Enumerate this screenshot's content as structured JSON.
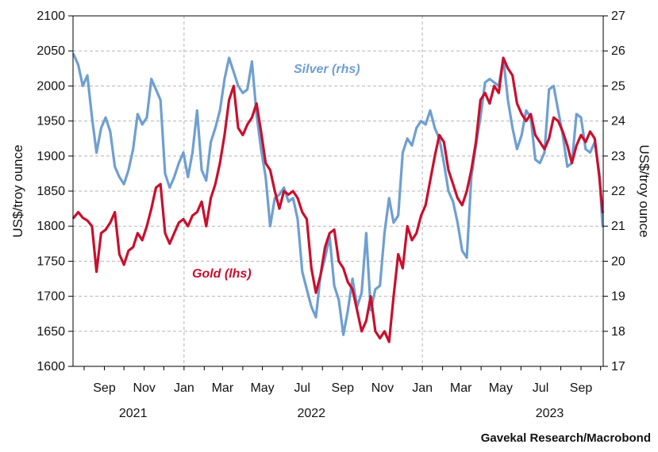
{
  "chart_data": {
    "type": "line",
    "source": "Gavekal Research/Macrobond",
    "y_left": {
      "label": "US$/troy ounce",
      "min": 1600,
      "max": 2100,
      "ticks": [
        1600,
        1650,
        1700,
        1750,
        1800,
        1850,
        1900,
        1950,
        2000,
        2050,
        2100
      ]
    },
    "y_right": {
      "label": "US$/troy ounce",
      "min": 17,
      "max": 27,
      "ticks": [
        17,
        18,
        19,
        20,
        21,
        22,
        23,
        24,
        25,
        26,
        27
      ]
    },
    "x_range": [
      "2021-07-15",
      "2023-10-05"
    ],
    "x_month_labels": [
      {
        "date": "2021-09-01",
        "label": "Sep"
      },
      {
        "date": "2021-11-01",
        "label": "Nov"
      },
      {
        "date": "2022-01-01",
        "label": "Jan"
      },
      {
        "date": "2022-03-01",
        "label": "Mar"
      },
      {
        "date": "2022-05-01",
        "label": "May"
      },
      {
        "date": "2022-07-01",
        "label": "Jul"
      },
      {
        "date": "2022-09-01",
        "label": "Sep"
      },
      {
        "date": "2022-11-01",
        "label": "Nov"
      },
      {
        "date": "2023-01-01",
        "label": "Jan"
      },
      {
        "date": "2023-03-01",
        "label": "Mar"
      },
      {
        "date": "2023-05-01",
        "label": "May"
      },
      {
        "date": "2023-07-01",
        "label": "Jul"
      },
      {
        "date": "2023-09-01",
        "label": "Sep"
      }
    ],
    "x_year_labels": [
      {
        "date": "2021-10-15",
        "label": "2021"
      },
      {
        "date": "2022-07-15",
        "label": "2022"
      },
      {
        "date": "2023-07-15",
        "label": "2023"
      }
    ],
    "gridlines": {
      "vertical_dates": [
        "2022-01-01",
        "2023-01-01"
      ],
      "horizontal": "left-axis ticks",
      "style": "dashed"
    },
    "colors": {
      "gold": "#c8102e",
      "silver": "#6f9fd1"
    },
    "series": [
      {
        "name": "Gold (lhs)",
        "axis": "left",
        "color": "#c8102e",
        "points": [
          [
            "2021-07-16",
            1812
          ],
          [
            "2021-07-23",
            1820
          ],
          [
            "2021-07-30",
            1812
          ],
          [
            "2021-08-06",
            1808
          ],
          [
            "2021-08-13",
            1800
          ],
          [
            "2021-08-20",
            1735
          ],
          [
            "2021-08-27",
            1790
          ],
          [
            "2021-09-03",
            1795
          ],
          [
            "2021-09-10",
            1805
          ],
          [
            "2021-09-17",
            1820
          ],
          [
            "2021-09-24",
            1760
          ],
          [
            "2021-10-01",
            1745
          ],
          [
            "2021-10-08",
            1765
          ],
          [
            "2021-10-15",
            1770
          ],
          [
            "2021-10-22",
            1790
          ],
          [
            "2021-10-29",
            1780
          ],
          [
            "2021-11-05",
            1800
          ],
          [
            "2021-11-12",
            1825
          ],
          [
            "2021-11-19",
            1855
          ],
          [
            "2021-11-26",
            1860
          ],
          [
            "2021-12-03",
            1790
          ],
          [
            "2021-12-10",
            1775
          ],
          [
            "2021-12-17",
            1790
          ],
          [
            "2021-12-24",
            1805
          ],
          [
            "2021-12-31",
            1810
          ],
          [
            "2022-01-07",
            1800
          ],
          [
            "2022-01-14",
            1815
          ],
          [
            "2022-01-21",
            1820
          ],
          [
            "2022-01-28",
            1835
          ],
          [
            "2022-02-04",
            1800
          ],
          [
            "2022-02-11",
            1840
          ],
          [
            "2022-02-18",
            1860
          ],
          [
            "2022-02-25",
            1890
          ],
          [
            "2022-03-04",
            1930
          ],
          [
            "2022-03-11",
            1980
          ],
          [
            "2022-03-18",
            2000
          ],
          [
            "2022-03-25",
            1940
          ],
          [
            "2022-04-01",
            1930
          ],
          [
            "2022-04-08",
            1945
          ],
          [
            "2022-04-15",
            1955
          ],
          [
            "2022-04-22",
            1975
          ],
          [
            "2022-04-29",
            1935
          ],
          [
            "2022-05-06",
            1890
          ],
          [
            "2022-05-13",
            1880
          ],
          [
            "2022-05-20",
            1850
          ],
          [
            "2022-05-27",
            1825
          ],
          [
            "2022-06-03",
            1850
          ],
          [
            "2022-06-10",
            1845
          ],
          [
            "2022-06-17",
            1850
          ],
          [
            "2022-06-24",
            1840
          ],
          [
            "2022-07-01",
            1820
          ],
          [
            "2022-07-08",
            1810
          ],
          [
            "2022-07-15",
            1740
          ],
          [
            "2022-07-22",
            1705
          ],
          [
            "2022-07-29",
            1730
          ],
          [
            "2022-08-05",
            1770
          ],
          [
            "2022-08-12",
            1790
          ],
          [
            "2022-08-19",
            1795
          ],
          [
            "2022-08-26",
            1750
          ],
          [
            "2022-09-02",
            1740
          ],
          [
            "2022-09-09",
            1720
          ],
          [
            "2022-09-16",
            1710
          ],
          [
            "2022-09-23",
            1680
          ],
          [
            "2022-09-30",
            1650
          ],
          [
            "2022-10-07",
            1665
          ],
          [
            "2022-10-14",
            1700
          ],
          [
            "2022-10-21",
            1650
          ],
          [
            "2022-10-28",
            1640
          ],
          [
            "2022-11-04",
            1650
          ],
          [
            "2022-11-11",
            1635
          ],
          [
            "2022-11-18",
            1700
          ],
          [
            "2022-11-25",
            1760
          ],
          [
            "2022-12-02",
            1740
          ],
          [
            "2022-12-09",
            1800
          ],
          [
            "2022-12-16",
            1780
          ],
          [
            "2022-12-23",
            1790
          ],
          [
            "2022-12-30",
            1815
          ],
          [
            "2023-01-06",
            1830
          ],
          [
            "2023-01-13",
            1865
          ],
          [
            "2023-01-20",
            1900
          ],
          [
            "2023-01-27",
            1930
          ],
          [
            "2023-02-03",
            1920
          ],
          [
            "2023-02-10",
            1880
          ],
          [
            "2023-02-17",
            1860
          ],
          [
            "2023-02-24",
            1840
          ],
          [
            "2023-03-03",
            1830
          ],
          [
            "2023-03-10",
            1850
          ],
          [
            "2023-03-17",
            1880
          ],
          [
            "2023-03-24",
            1920
          ],
          [
            "2023-03-31",
            1980
          ],
          [
            "2023-04-07",
            1990
          ],
          [
            "2023-04-14",
            1975
          ],
          [
            "2023-04-21",
            2000
          ],
          [
            "2023-04-28",
            1990
          ],
          [
            "2023-05-05",
            2040
          ],
          [
            "2023-05-12",
            2025
          ],
          [
            "2023-05-19",
            2015
          ],
          [
            "2023-05-26",
            1975
          ],
          [
            "2023-06-02",
            1960
          ],
          [
            "2023-06-09",
            1950
          ],
          [
            "2023-06-16",
            1960
          ],
          [
            "2023-06-23",
            1930
          ],
          [
            "2023-06-30",
            1920
          ],
          [
            "2023-07-07",
            1910
          ],
          [
            "2023-07-14",
            1925
          ],
          [
            "2023-07-21",
            1955
          ],
          [
            "2023-07-28",
            1950
          ],
          [
            "2023-08-04",
            1935
          ],
          [
            "2023-08-11",
            1915
          ],
          [
            "2023-08-18",
            1890
          ],
          [
            "2023-08-25",
            1915
          ],
          [
            "2023-09-01",
            1930
          ],
          [
            "2023-09-08",
            1920
          ],
          [
            "2023-09-15",
            1935
          ],
          [
            "2023-09-22",
            1925
          ],
          [
            "2023-09-29",
            1870
          ],
          [
            "2023-10-04",
            1820
          ]
        ]
      },
      {
        "name": "Silver (rhs)",
        "axis": "right",
        "color": "#6f9fd1",
        "points": [
          [
            "2021-07-16",
            25.9
          ],
          [
            "2021-07-23",
            25.6
          ],
          [
            "2021-07-30",
            25.0
          ],
          [
            "2021-08-06",
            25.3
          ],
          [
            "2021-08-13",
            24.1
          ],
          [
            "2021-08-20",
            23.1
          ],
          [
            "2021-08-27",
            23.8
          ],
          [
            "2021-09-03",
            24.1
          ],
          [
            "2021-09-10",
            23.7
          ],
          [
            "2021-09-17",
            22.7
          ],
          [
            "2021-09-24",
            22.4
          ],
          [
            "2021-10-01",
            22.2
          ],
          [
            "2021-10-08",
            22.6
          ],
          [
            "2021-10-15",
            23.2
          ],
          [
            "2021-10-22",
            24.2
          ],
          [
            "2021-10-29",
            23.9
          ],
          [
            "2021-11-05",
            24.1
          ],
          [
            "2021-11-12",
            25.2
          ],
          [
            "2021-11-19",
            24.9
          ],
          [
            "2021-11-26",
            24.6
          ],
          [
            "2021-12-03",
            22.5
          ],
          [
            "2021-12-10",
            22.1
          ],
          [
            "2021-12-17",
            22.4
          ],
          [
            "2021-12-24",
            22.8
          ],
          [
            "2021-12-31",
            23.1
          ],
          [
            "2022-01-07",
            22.4
          ],
          [
            "2022-01-14",
            23.1
          ],
          [
            "2022-01-21",
            24.3
          ],
          [
            "2022-01-28",
            22.6
          ],
          [
            "2022-02-04",
            22.3
          ],
          [
            "2022-02-11",
            23.4
          ],
          [
            "2022-02-18",
            23.8
          ],
          [
            "2022-02-25",
            24.3
          ],
          [
            "2022-03-04",
            25.2
          ],
          [
            "2022-03-11",
            25.8
          ],
          [
            "2022-03-18",
            25.4
          ],
          [
            "2022-03-25",
            25.0
          ],
          [
            "2022-04-01",
            24.8
          ],
          [
            "2022-04-08",
            24.9
          ],
          [
            "2022-04-15",
            25.7
          ],
          [
            "2022-04-22",
            24.2
          ],
          [
            "2022-04-29",
            23.2
          ],
          [
            "2022-05-06",
            22.4
          ],
          [
            "2022-05-13",
            21.0
          ],
          [
            "2022-05-20",
            21.8
          ],
          [
            "2022-05-27",
            21.9
          ],
          [
            "2022-06-03",
            22.1
          ],
          [
            "2022-06-10",
            21.7
          ],
          [
            "2022-06-17",
            21.8
          ],
          [
            "2022-06-24",
            21.2
          ],
          [
            "2022-07-01",
            19.7
          ],
          [
            "2022-07-08",
            19.2
          ],
          [
            "2022-07-15",
            18.7
          ],
          [
            "2022-07-22",
            18.4
          ],
          [
            "2022-07-29",
            19.6
          ],
          [
            "2022-08-05",
            20.1
          ],
          [
            "2022-08-12",
            20.7
          ],
          [
            "2022-08-19",
            19.3
          ],
          [
            "2022-08-26",
            18.9
          ],
          [
            "2022-09-02",
            17.9
          ],
          [
            "2022-09-09",
            18.6
          ],
          [
            "2022-09-16",
            19.5
          ],
          [
            "2022-09-23",
            18.7
          ],
          [
            "2022-09-30",
            19.1
          ],
          [
            "2022-10-07",
            20.8
          ],
          [
            "2022-10-14",
            18.6
          ],
          [
            "2022-10-21",
            19.2
          ],
          [
            "2022-10-28",
            19.3
          ],
          [
            "2022-11-04",
            20.8
          ],
          [
            "2022-11-11",
            21.8
          ],
          [
            "2022-11-18",
            21.1
          ],
          [
            "2022-11-25",
            21.3
          ],
          [
            "2022-12-02",
            23.1
          ],
          [
            "2022-12-09",
            23.5
          ],
          [
            "2022-12-16",
            23.3
          ],
          [
            "2022-12-23",
            23.8
          ],
          [
            "2022-12-30",
            24.0
          ],
          [
            "2023-01-06",
            23.9
          ],
          [
            "2023-01-13",
            24.3
          ],
          [
            "2023-01-20",
            23.8
          ],
          [
            "2023-01-27",
            23.5
          ],
          [
            "2023-02-03",
            22.8
          ],
          [
            "2023-02-10",
            22.0
          ],
          [
            "2023-02-17",
            21.7
          ],
          [
            "2023-02-24",
            21.1
          ],
          [
            "2023-03-03",
            20.3
          ],
          [
            "2023-03-10",
            20.1
          ],
          [
            "2023-03-17",
            22.4
          ],
          [
            "2023-03-24",
            23.3
          ],
          [
            "2023-03-31",
            24.1
          ],
          [
            "2023-04-07",
            25.1
          ],
          [
            "2023-04-14",
            25.2
          ],
          [
            "2023-04-21",
            25.1
          ],
          [
            "2023-04-28",
            25.0
          ],
          [
            "2023-05-05",
            25.8
          ],
          [
            "2023-05-12",
            24.6
          ],
          [
            "2023-05-19",
            23.8
          ],
          [
            "2023-05-26",
            23.2
          ],
          [
            "2023-06-02",
            23.6
          ],
          [
            "2023-06-09",
            24.3
          ],
          [
            "2023-06-16",
            24.1
          ],
          [
            "2023-06-23",
            22.9
          ],
          [
            "2023-06-30",
            22.8
          ],
          [
            "2023-07-07",
            23.1
          ],
          [
            "2023-07-14",
            24.9
          ],
          [
            "2023-07-21",
            25.0
          ],
          [
            "2023-07-28",
            24.3
          ],
          [
            "2023-08-04",
            23.6
          ],
          [
            "2023-08-11",
            22.7
          ],
          [
            "2023-08-18",
            22.8
          ],
          [
            "2023-08-25",
            24.2
          ],
          [
            "2023-09-01",
            24.1
          ],
          [
            "2023-09-08",
            23.2
          ],
          [
            "2023-09-15",
            23.1
          ],
          [
            "2023-09-22",
            23.4
          ],
          [
            "2023-09-29",
            22.5
          ],
          [
            "2023-10-04",
            21.0
          ]
        ]
      }
    ]
  }
}
